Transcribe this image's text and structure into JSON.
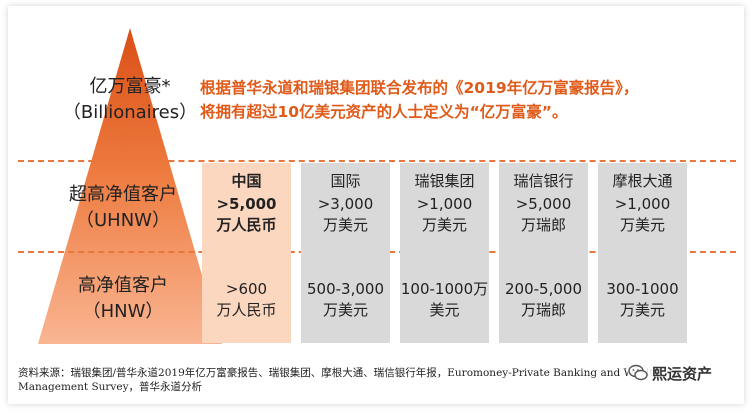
{
  "tiers": {
    "billionaires": {
      "zh": "亿万富豪*",
      "en": "（Billionaires）"
    },
    "uhnw": {
      "zh": "超高净值客户",
      "en": "（UHNW）"
    },
    "hnw": {
      "zh": "高净值客户",
      "en": "（HNW）"
    }
  },
  "description": {
    "line1": "根据普华永道和瑞银集团联合发布的《2019年亿万富豪报告》，",
    "line2": "将拥有超过10亿美元资产的人士定义为“亿万富豪”。"
  },
  "columns": [
    {
      "header": "中国",
      "uhnw_1": ">5,000",
      "uhnw_2": "万人民币",
      "hnw_1": ">600",
      "hnw_2": "万人民币"
    },
    {
      "header": "国际",
      "uhnw_1": ">3,000",
      "uhnw_2": "万美元",
      "hnw_1": "500-3,000",
      "hnw_2": "万美元"
    },
    {
      "header": "瑞银集团",
      "uhnw_1": ">1,000",
      "uhnw_2": "万美元",
      "hnw_1": "100-1000万",
      "hnw_2": "美元"
    },
    {
      "header": "瑞信银行",
      "uhnw_1": ">5,000",
      "uhnw_2": "万瑞郎",
      "hnw_1": "200-5,000",
      "hnw_2": "万瑞郎"
    },
    {
      "header": "摩根大通",
      "uhnw_1": ">1,000",
      "uhnw_2": "万美元",
      "hnw_1": "300-1000",
      "hnw_2": "万美元"
    }
  ],
  "source": {
    "line1": "资料来源：瑞银集团/普华永道2019年亿万富豪报告、瑞银集团、摩根大通、瑞信银行年报，Euromoney-Private Banking and Wealth",
    "line2": "Management Survey，普华永道分析"
  },
  "watermark": "熙运资产",
  "colors": {
    "accent": "#E05A1A",
    "pyramid_top": "#D94F16",
    "pyramid_bottom": "#F9B592",
    "highlight_col": "#FBD7C0",
    "gray_col": "#D9D9D9"
  }
}
